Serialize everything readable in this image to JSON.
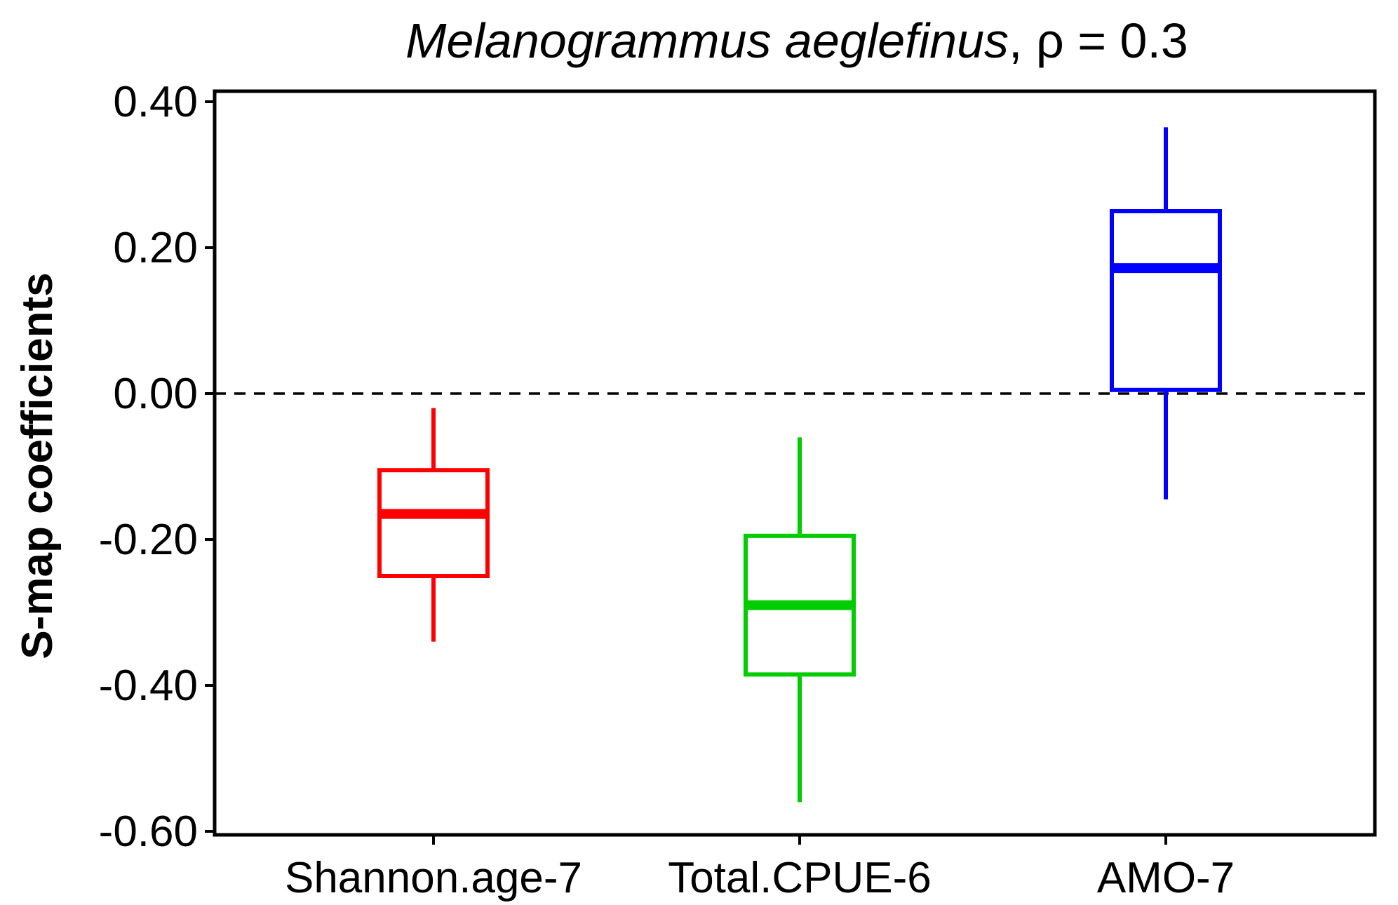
{
  "chart_data": {
    "type": "box",
    "title": {
      "species": "Melanogrammus aeglefinus",
      "rest": ", ρ = 0.3"
    },
    "xlabel": "",
    "ylabel": "S-map coefficients",
    "ylim": [
      -0.6,
      0.4
    ],
    "yticks": [
      0.4,
      0.2,
      0.0,
      -0.2,
      -0.4,
      -0.6
    ],
    "ytick_labels": [
      "0.40",
      "0.20",
      "0.00",
      "-0.20",
      "-0.40",
      "-0.60"
    ],
    "reference_line": {
      "y": 0.0,
      "style": "dashed",
      "color": "#000000"
    },
    "grid": false,
    "categories": [
      "Shannon.age-7",
      "Total.CPUE-6",
      "AMO-7"
    ],
    "boxes": [
      {
        "category": "Shannon.age-7",
        "color": "#ff0000",
        "whisker_low": -0.34,
        "q1": -0.25,
        "median": -0.165,
        "q3": -0.105,
        "whisker_high": -0.02
      },
      {
        "category": "Total.CPUE-6",
        "color": "#00cc00",
        "whisker_low": -0.56,
        "q1": -0.385,
        "median": -0.29,
        "q3": -0.195,
        "whisker_high": -0.06
      },
      {
        "category": "AMO-7",
        "color": "#0000ff",
        "whisker_low": -0.145,
        "q1": 0.005,
        "median": 0.172,
        "q3": 0.25,
        "whisker_high": 0.365
      }
    ]
  }
}
